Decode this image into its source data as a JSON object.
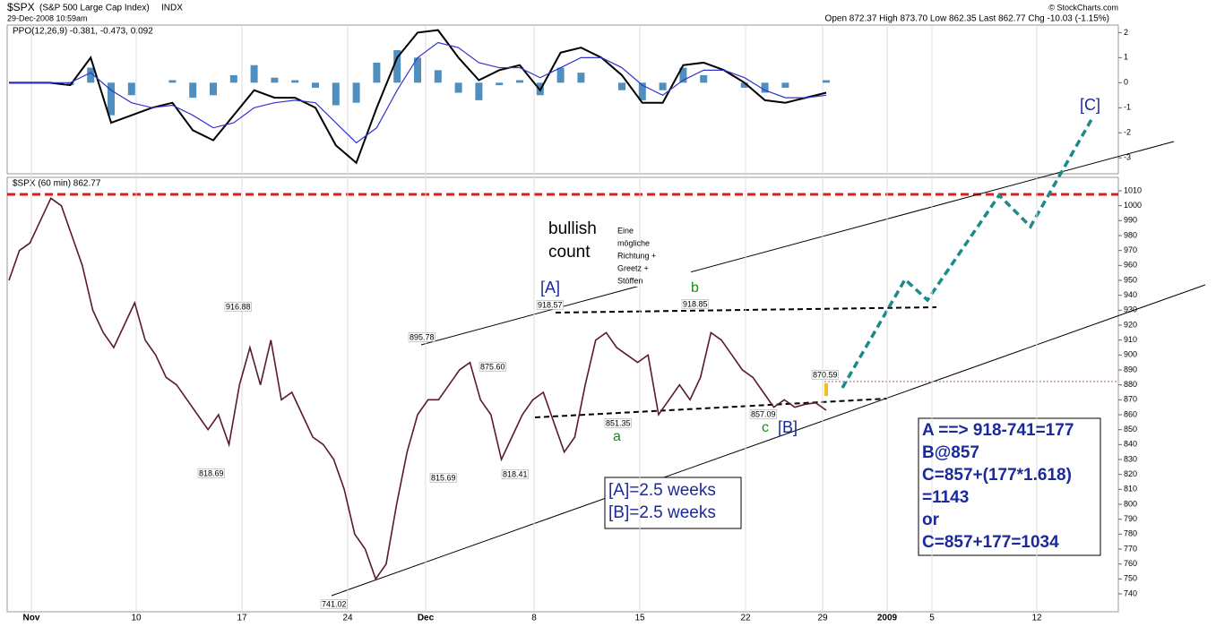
{
  "header": {
    "symbol": "$SPX",
    "name": "(S&P 500 Large Cap Index)",
    "exchange": "INDX",
    "timestamp": "29-Dec-2008 10:59am",
    "source": "© StockCharts.com",
    "quote": "Open 872.37  High 873.70  Low 862.35  Last 862.77  Chg -10.03 (-1.15%)"
  },
  "x_labels": [
    "Nov",
    "10",
    "17",
    "24",
    "Dec",
    "8",
    "15",
    "22",
    "29",
    "2009",
    "5",
    "12"
  ],
  "chart_data": [
    {
      "type": "ppo",
      "legend": "PPO(12,26,9) -0.381, -0.473, 0.092",
      "ylim": [
        -3.6,
        2.3
      ],
      "yticks": [
        2,
        1,
        0,
        -1,
        -2,
        -3
      ],
      "series": [
        {
          "name": "PPO",
          "color": "#000000",
          "values": [
            0,
            0,
            0,
            -0.1,
            1.0,
            -1.6,
            -1.3,
            -1.0,
            -0.8,
            -1.9,
            -2.3,
            -1.3,
            -0.3,
            -0.6,
            -0.6,
            -1.0,
            -2.5,
            -3.2,
            -1.0,
            1.0,
            2.0,
            2.1,
            1.0,
            0.1,
            0.5,
            0.7,
            -0.3,
            1.2,
            1.4,
            1.0,
            0.3,
            -0.8,
            -0.8,
            0.7,
            0.8,
            0.5,
            0,
            -0.7,
            -0.8,
            -0.6,
            -0.4
          ]
        },
        {
          "name": "Signal",
          "color": "#3333cc",
          "values": [
            0,
            0,
            0,
            0,
            0.4,
            -0.3,
            -0.8,
            -1.0,
            -0.9,
            -1.3,
            -1.8,
            -1.6,
            -1.0,
            -0.8,
            -0.7,
            -0.8,
            -1.6,
            -2.4,
            -1.8,
            -0.3,
            1.0,
            1.6,
            1.4,
            0.8,
            0.6,
            0.6,
            0.2,
            0.6,
            1.0,
            1.0,
            0.6,
            -0.1,
            -0.5,
            0.1,
            0.5,
            0.5,
            0.2,
            -0.3,
            -0.6,
            -0.6,
            -0.5
          ]
        },
        {
          "name": "Histogram",
          "color": "#4f8fc0",
          "values": [
            0,
            0,
            0,
            -0.1,
            0.6,
            -1.3,
            -0.5,
            0,
            0.1,
            -0.6,
            -0.5,
            0.3,
            0.7,
            0.2,
            0.1,
            -0.2,
            -0.9,
            -0.8,
            0.8,
            1.3,
            1.0,
            0.5,
            -0.4,
            -0.7,
            -0.1,
            0.1,
            -0.5,
            0.6,
            0.4,
            0,
            -0.3,
            -0.7,
            -0.3,
            0.6,
            0.3,
            0,
            -0.2,
            -0.4,
            -0.2,
            0,
            0.1
          ]
        }
      ]
    },
    {
      "type": "line",
      "legend": "$SPX (60 min) 862.77",
      "ylim": [
        728,
        1019
      ],
      "yticks": [
        740,
        750,
        760,
        770,
        780,
        790,
        800,
        810,
        820,
        830,
        840,
        850,
        860,
        870,
        880,
        890,
        900,
        910,
        920,
        930,
        940,
        950,
        960,
        970,
        980,
        990,
        1000,
        1010
      ],
      "series": [
        {
          "name": "$SPX",
          "color": "#5a1a2a",
          "values": [
            950,
            970,
            975,
            990,
            1005,
            1000,
            980,
            960,
            930,
            915,
            905,
            920,
            935,
            910,
            900,
            885,
            880,
            870,
            860,
            850,
            860,
            840,
            880,
            905,
            880,
            910,
            870,
            875,
            860,
            845,
            840,
            830,
            810,
            780,
            770,
            750,
            760,
            800,
            835,
            860,
            870,
            870,
            880,
            890,
            895,
            870,
            860,
            830,
            845,
            860,
            870,
            875,
            855,
            835,
            845,
            880,
            910,
            915,
            905,
            900,
            895,
            900,
            860,
            870,
            880,
            870,
            885,
            915,
            910,
            900,
            890,
            885,
            875,
            865,
            870,
            865,
            867,
            868,
            863
          ]
        }
      ],
      "annotations": [
        "bullish",
        "count",
        "Eine",
        "mögliche",
        "Richtung +",
        "Greetz +",
        "Stöffen",
        "[A]",
        "b",
        "a",
        "c",
        "[B]",
        "[C]",
        "918.57",
        "918.85",
        "895.78",
        "916.88",
        "875.60",
        "870.59",
        "851.35",
        "857.09",
        "818.69",
        "815.69",
        "818.41",
        "741.02",
        "[A]=2.5 weeks",
        "[B]=2.5 weeks",
        "A ==> 918-741=177",
        "B@857",
        "C=857+(177*1.618)",
        "=1143",
        "or",
        "C=857+177=1034"
      ]
    }
  ]
}
